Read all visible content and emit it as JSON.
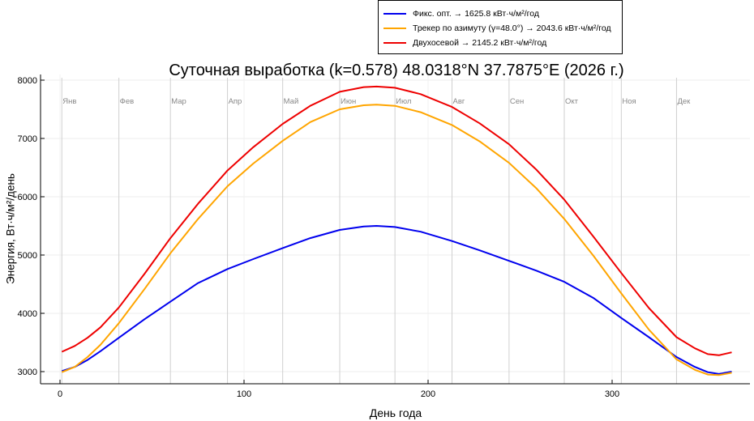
{
  "chart_data": {
    "type": "line",
    "title": "Суточная выработка (k=0.578) 48.0318°N  37.7875°E  (2026 г.)",
    "xlabel": "День года",
    "ylabel": "Энергия, Вт·ч/м²/день",
    "xlim": [
      -10,
      375
    ],
    "ylim": [
      2800,
      8050
    ],
    "xticks": [
      0,
      100,
      200,
      300
    ],
    "yticks": [
      3000,
      4000,
      5000,
      6000,
      7000,
      8000
    ],
    "grid": true,
    "legend_position": "top-right (outside, above plot)",
    "month_markers": [
      {
        "label": "Янв",
        "day": 1
      },
      {
        "label": "Фев",
        "day": 32
      },
      {
        "label": "Мар",
        "day": 60
      },
      {
        "label": "Апр",
        "day": 91
      },
      {
        "label": "Май",
        "day": 121
      },
      {
        "label": "Июн",
        "day": 152
      },
      {
        "label": "Июл",
        "day": 182
      },
      {
        "label": "Авг",
        "day": 213
      },
      {
        "label": "Сен",
        "day": 244
      },
      {
        "label": "Окт",
        "day": 274
      },
      {
        "label": "Ноя",
        "day": 305
      },
      {
        "label": "Дек",
        "day": 335
      }
    ],
    "x": [
      1,
      8,
      15,
      22,
      32,
      46,
      60,
      75,
      91,
      105,
      121,
      136,
      152,
      165,
      172,
      182,
      196,
      213,
      228,
      244,
      259,
      274,
      290,
      305,
      320,
      335,
      345,
      352,
      358,
      365
    ],
    "series": [
      {
        "name": "Фикс. опт. → 1625.8 кВт·ч/м²/год",
        "color": "#0000ee",
        "values": [
          3010,
          3080,
          3200,
          3350,
          3580,
          3900,
          4200,
          4520,
          4760,
          4930,
          5120,
          5290,
          5430,
          5490,
          5500,
          5480,
          5400,
          5240,
          5080,
          4900,
          4730,
          4540,
          4260,
          3920,
          3590,
          3250,
          3080,
          2990,
          2960,
          3000
        ]
      },
      {
        "name": "Трекер по азимуту (γ=48.0°) → 2043.6 кВт·ч/м²/год",
        "color": "#ffa500",
        "values": [
          2990,
          3080,
          3250,
          3460,
          3830,
          4420,
          5030,
          5620,
          6180,
          6570,
          6960,
          7280,
          7500,
          7570,
          7580,
          7560,
          7450,
          7230,
          6950,
          6580,
          6140,
          5620,
          4980,
          4340,
          3720,
          3210,
          3030,
          2950,
          2940,
          2980
        ]
      },
      {
        "name": "Двухосевой → 2145.2 кВт·ч/м²/год",
        "color": "#ee0000",
        "values": [
          3340,
          3440,
          3580,
          3760,
          4100,
          4680,
          5290,
          5880,
          6450,
          6850,
          7250,
          7560,
          7800,
          7880,
          7890,
          7870,
          7760,
          7540,
          7260,
          6900,
          6460,
          5950,
          5310,
          4690,
          4090,
          3590,
          3400,
          3300,
          3280,
          3330
        ]
      }
    ]
  },
  "legend": {
    "items": [
      {
        "label": "Фикс. опт. → 1625.8 кВт·ч/м²/год",
        "color": "#0000ee"
      },
      {
        "label": "Трекер по азимуту (γ=48.0°) → 2043.6 кВт·ч/м²/год",
        "color": "#ffa500"
      },
      {
        "label": "Двухосевой → 2145.2 кВт·ч/м²/год",
        "color": "#ee0000"
      }
    ]
  },
  "header": {
    "title": "Суточная выработка (k=0.578) 48.0318°N  37.7875°E  (2026 г.)"
  },
  "axes": {
    "xlabel": "День года",
    "ylabel": "Энергия, Вт·ч/м²/день"
  }
}
